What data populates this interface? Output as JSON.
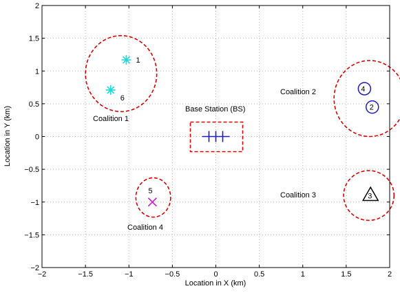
{
  "chart_data": {
    "type": "scatter",
    "title": "",
    "xlabel": "Location in X (km)",
    "ylabel": "Location in Y (km)",
    "xlim": [
      -2,
      2
    ],
    "ylim": [
      -2,
      2
    ],
    "xticks": [
      -2,
      -1.5,
      -1,
      -0.5,
      0,
      0.5,
      1,
      1.5,
      2
    ],
    "xtick_labels": [
      "−2",
      "−1.5",
      "−1",
      "−0.5",
      "0",
      "0.5",
      "1",
      "1.5",
      "2"
    ],
    "yticks": [
      -2,
      -1.5,
      -1,
      -0.5,
      0,
      0.5,
      1,
      1.5,
      2
    ],
    "ytick_labels": [
      "−2",
      "−1.5",
      "−1",
      "−0.5",
      "0",
      "0.5",
      "1",
      "1.5",
      "2"
    ],
    "grid": true,
    "colors": {
      "coalition_boundary": "#e00000",
      "base_station": "#1a1acc",
      "coalition1_nodes": "#1ed8d8",
      "coalition2_nodes": "#1a1acc",
      "coalition3_nodes": "#000000",
      "coalition4_nodes": "#cc22cc"
    },
    "nodes": [
      {
        "id": "1",
        "label": "1",
        "x": -1.03,
        "y": 1.17,
        "marker": "asterisk",
        "color": "#1ed8d8"
      },
      {
        "id": "6",
        "label": "6",
        "x": -1.21,
        "y": 0.71,
        "marker": "asterisk",
        "color": "#1ed8d8"
      },
      {
        "id": "4",
        "label": "4",
        "x": 1.71,
        "y": 0.73,
        "marker": "circle",
        "color": "#1a1acc"
      },
      {
        "id": "2",
        "label": "2",
        "x": 1.8,
        "y": 0.45,
        "marker": "circle",
        "color": "#1a1acc"
      },
      {
        "id": "3",
        "label": "3",
        "x": 1.78,
        "y": -0.89,
        "marker": "triangle",
        "color": "#000000"
      },
      {
        "id": "5",
        "label": "5",
        "x": -0.73,
        "y": -1.0,
        "marker": "x",
        "color": "#cc22cc"
      }
    ],
    "base_station": {
      "label": "Base Station (BS)",
      "x": 0.0,
      "y": 0.0,
      "marker": "plus-triple"
    },
    "coalitions": [
      {
        "name": "Coalition 1",
        "cx": -1.09,
        "cy": 0.96,
        "rx": 0.41,
        "ry": 0.58
      },
      {
        "name": "Coalition 2",
        "cx": 1.77,
        "cy": 0.58,
        "rx": 0.41,
        "ry": 0.58
      },
      {
        "name": "Coalition 3",
        "cx": 1.76,
        "cy": -0.9,
        "rx": 0.29,
        "ry": 0.38
      },
      {
        "name": "Coalition 4",
        "cx": -0.72,
        "cy": -0.93,
        "rx": 0.2,
        "ry": 0.3
      }
    ],
    "annotations": {
      "coalition1": "Coalition 1",
      "coalition2": "Coalition 2",
      "coalition3": "Coalition 3",
      "coalition4": "Coalition 4",
      "base_station": "Base Station (BS)"
    }
  }
}
